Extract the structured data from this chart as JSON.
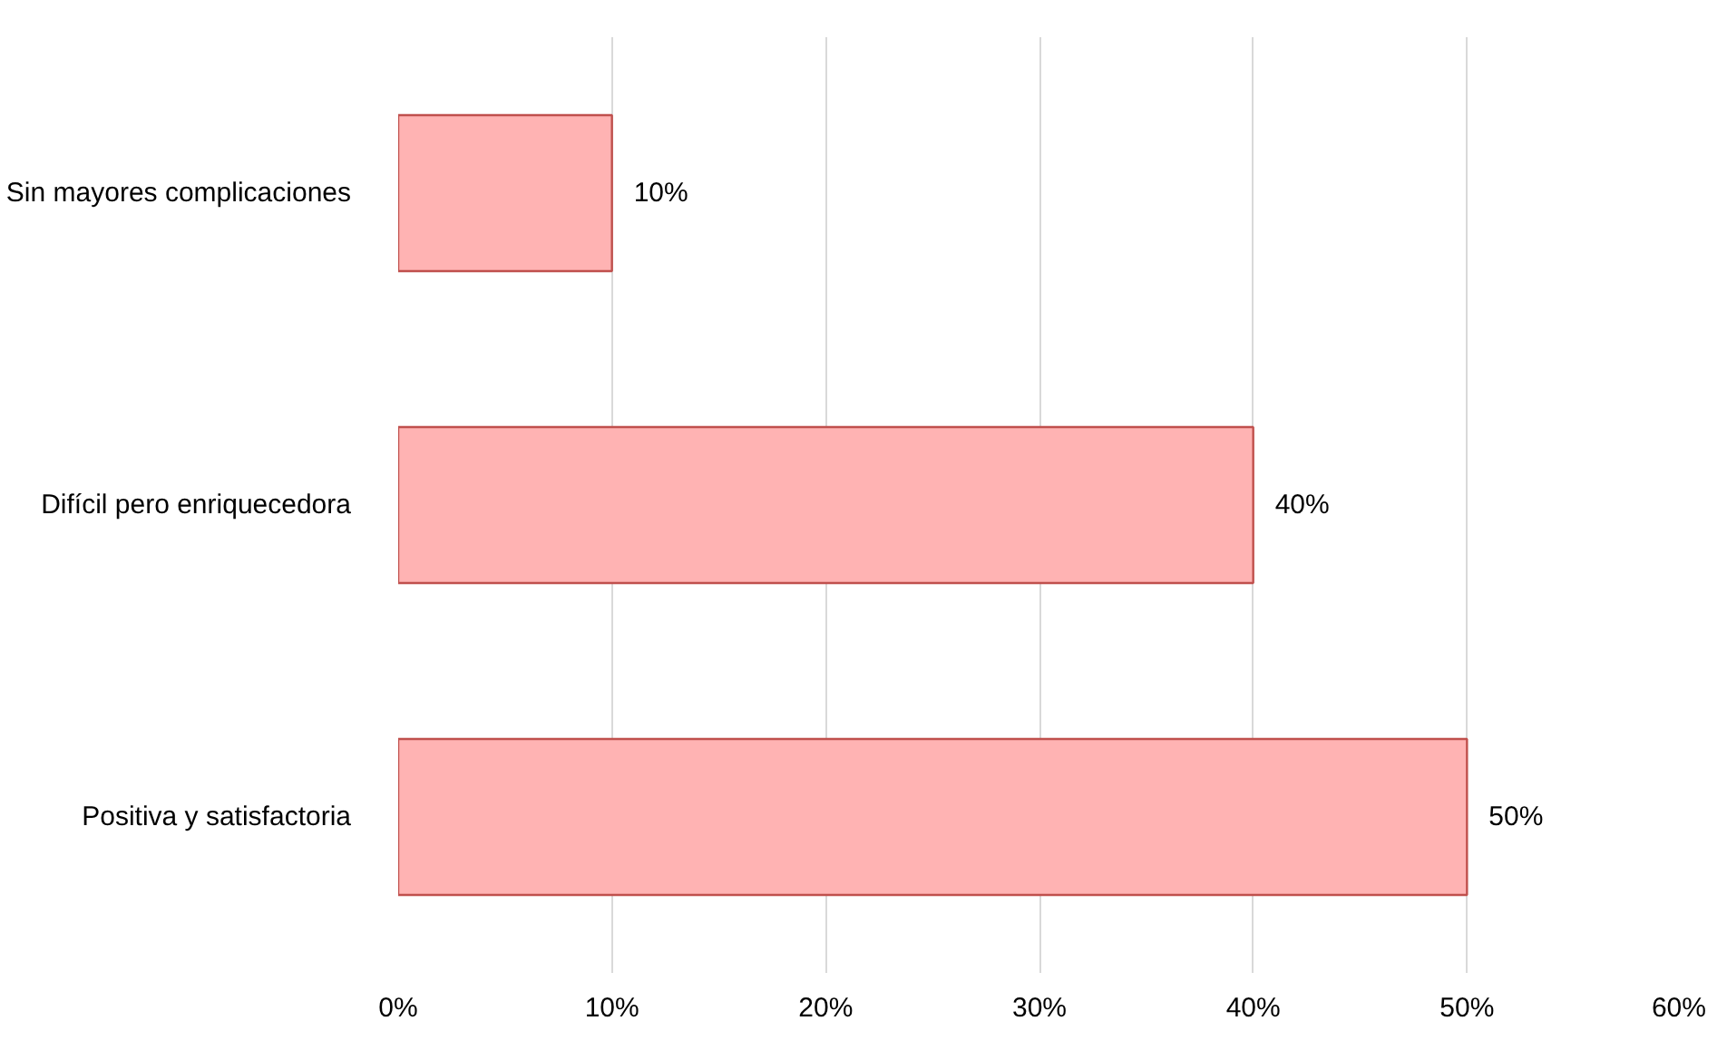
{
  "chart_data": {
    "type": "bar",
    "orientation": "horizontal",
    "categories": [
      "Sin mayores complicaciones",
      "Difícil pero enriquecedora",
      "Positiva y satisfactoria"
    ],
    "values": [
      10,
      40,
      50
    ],
    "value_labels": [
      "10%",
      "40%",
      "50%"
    ],
    "color": "#ffb3b3",
    "xlim": [
      0,
      60
    ],
    "xticks": [
      {
        "value": 0,
        "label": "0%"
      },
      {
        "value": 10,
        "label": "10%"
      },
      {
        "value": 20,
        "label": "20%"
      },
      {
        "value": 30,
        "label": "30%"
      },
      {
        "value": 40,
        "label": "40%"
      },
      {
        "value": 50,
        "label": "50%"
      },
      {
        "value": 60,
        "label": "60%"
      }
    ],
    "grid": "x"
  }
}
